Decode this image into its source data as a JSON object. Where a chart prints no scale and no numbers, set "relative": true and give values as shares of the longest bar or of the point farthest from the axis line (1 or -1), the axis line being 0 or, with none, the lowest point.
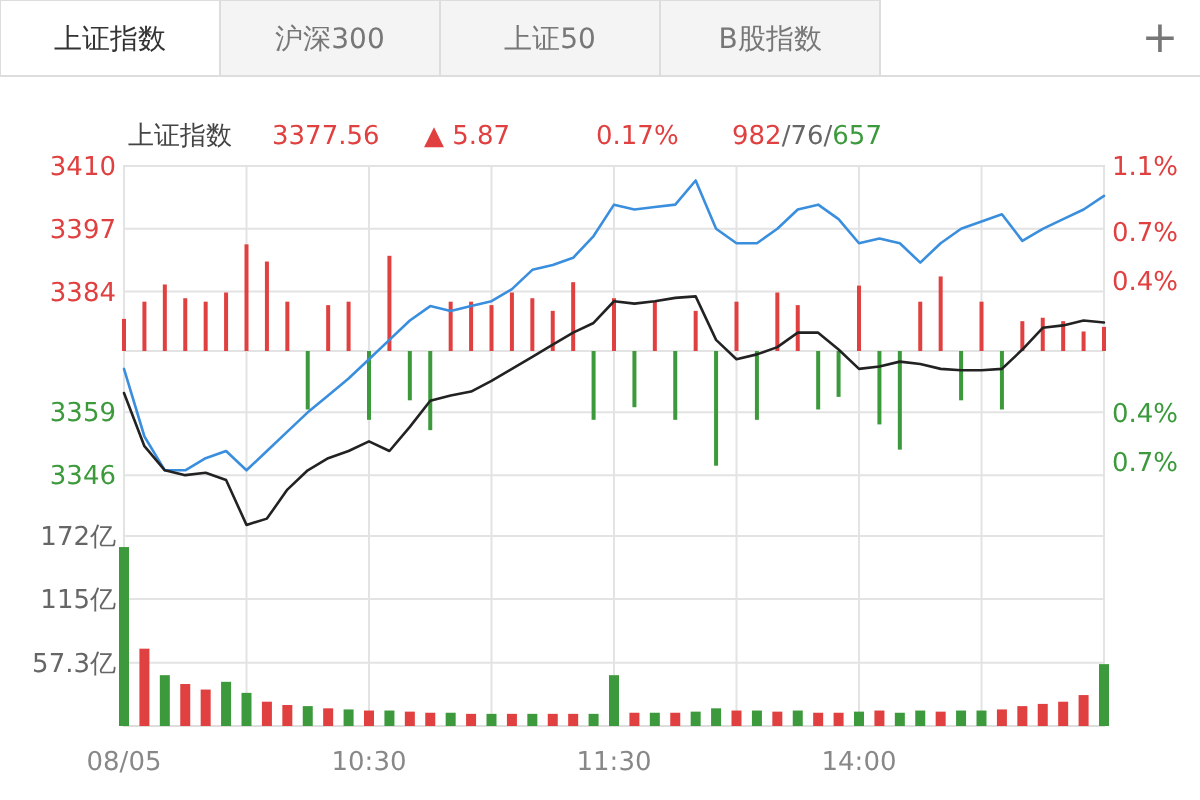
{
  "chart_data": [
    {
      "type": "line",
      "title": "上证指数",
      "annotations": [
        "上证指数",
        "沪深300",
        "上证50",
        "B股指数",
        "+",
        "3377.56",
        "▲ 5.87",
        "0.17%",
        "982/76/657"
      ],
      "categories": [
        null,
        null,
        null,
        null,
        null,
        null,
        null,
        null,
        null,
        null,
        null,
        null,
        null,
        null,
        null,
        null,
        null,
        null,
        null,
        null,
        null,
        null,
        null,
        null,
        null,
        null,
        null,
        null,
        null,
        null,
        null,
        null,
        null,
        null,
        null,
        null,
        null,
        null,
        null,
        null,
        null,
        null,
        null,
        null,
        null,
        null,
        null,
        null,
        null
      ],
      "ylim": [
        3333.4,
        3410
      ],
      "yticks": [
        3410,
        3397,
        3384,
        3359,
        3346
      ],
      "y2lim": [
        -1.15,
        1.1
      ],
      "y2ticks": [
        {
          "value": 1.1,
          "label": "1.1%"
        },
        {
          "value": 0.7,
          "label": "0.7%"
        },
        {
          "value": 0.4,
          "label": "0.4%"
        },
        {
          "value": -0.4,
          "label": "0.4%"
        },
        {
          "value": -0.7,
          "label": "0.7%"
        }
      ],
      "grid": true,
      "tick_labels": "y",
      "series": [
        {
          "color": "#3a8ede",
          "values": [
            3368,
            3354,
            3347,
            3347,
            3349.5,
            3351,
            3347,
            3351,
            3355,
            3359,
            3362.5,
            3366,
            3370,
            3374,
            3378,
            3381,
            3380,
            3381,
            3382,
            3384.5,
            3388.5,
            3389.5,
            3391,
            3395.5,
            3402,
            3401,
            3401.5,
            3402,
            3407,
            3397,
            3394,
            3394,
            3397,
            3401,
            3402,
            3399,
            3394,
            3395,
            3394,
            3390,
            3394,
            3397,
            3398.5,
            3400,
            3394.5,
            3397,
            3399,
            3401,
            3403.8
          ]
        },
        {
          "color": "#222222",
          "values": [
            3363,
            3352,
            3347,
            3346,
            3346.5,
            3345,
            3335.7,
            3337,
            3343,
            3347,
            3349.5,
            3351,
            3353,
            3351,
            3356,
            3361.4,
            3362.5,
            3363.3,
            3365.5,
            3368,
            3370.5,
            3373,
            3375.5,
            3377.5,
            3382,
            3381.5,
            3382,
            3382.7,
            3383,
            3374,
            3370,
            3371,
            3372.5,
            3375.5,
            3375.5,
            3372,
            3368,
            3368.5,
            3369.5,
            3369,
            3368,
            3367.7,
            3367.7,
            3368,
            3372,
            3376.5,
            3377,
            3378,
            3377.6
          ]
        }
      ]
    },
    {
      "type": "bar",
      "relative": true,
      "categories": [
        null,
        null,
        null,
        null,
        null,
        null,
        null,
        null,
        null,
        null,
        null,
        null,
        null,
        null,
        null,
        null,
        null,
        null,
        null,
        null,
        null,
        null,
        null,
        null,
        null,
        null,
        null,
        null,
        null,
        null,
        null,
        null,
        null,
        null,
        null,
        null,
        null,
        null,
        null,
        null,
        null,
        null,
        null,
        null,
        null,
        null,
        null,
        null,
        null
      ],
      "series": [
        {
          "values": [
            0.28,
            0.43,
            0.58,
            0.46,
            0.43,
            0.51,
            0.93,
            0.78,
            0.43,
            -0.51,
            0.4,
            0.43,
            -0.6,
            0.83,
            -0.43,
            -0.69,
            0.43,
            0.43,
            0.4,
            0.51,
            0.46,
            0.35,
            0.6,
            -0.6,
            0.46,
            -0.49,
            0.43,
            -0.6,
            0.35,
            -1,
            0.43,
            -0.6,
            0.51,
            0.4,
            -0.51,
            -0.4,
            0.57,
            -0.64,
            -0.86,
            0.43,
            0.65,
            -0.43,
            0.43,
            -0.51,
            0.26,
            0.29,
            0.26,
            0.17,
            0.21
          ],
          "colors": [
            "#e04040",
            "#e04040",
            "#e04040",
            "#e04040",
            "#e04040",
            "#e04040",
            "#e04040",
            "#e04040",
            "#e04040",
            "#3c9a3c",
            "#e04040",
            "#e04040",
            "#3c9a3c",
            "#e04040",
            "#3c9a3c",
            "#3c9a3c",
            "#e04040",
            "#e04040",
            "#e04040",
            "#e04040",
            "#e04040",
            "#e04040",
            "#e04040",
            "#3c9a3c",
            "#e04040",
            "#3c9a3c",
            "#e04040",
            "#3c9a3c",
            "#e04040",
            "#3c9a3c",
            "#e04040",
            "#3c9a3c",
            "#e04040",
            "#e04040",
            "#3c9a3c",
            "#3c9a3c",
            "#e04040",
            "#3c9a3c",
            "#3c9a3c",
            "#e04040",
            "#e04040",
            "#3c9a3c",
            "#e04040",
            "#3c9a3c",
            "#e04040",
            "#e04040",
            "#e04040",
            "#e04040",
            "#e04040"
          ]
        }
      ]
    },
    {
      "type": "bar",
      "categories": [
        "08/05",
        null,
        null,
        null,
        null,
        null,
        null,
        null,
        null,
        null,
        null,
        null,
        "10:30",
        null,
        null,
        null,
        null,
        null,
        null,
        null,
        null,
        null,
        null,
        null,
        "11:30",
        null,
        null,
        null,
        null,
        null,
        null,
        null,
        null,
        null,
        null,
        null,
        "14:00",
        null,
        null,
        null,
        null,
        null,
        null,
        null,
        null,
        null,
        null,
        null,
        null
      ],
      "ylim": [
        0,
        172
      ],
      "yticks": [
        {
          "value": 172,
          "label": "172亿"
        },
        {
          "value": 115,
          "label": "115亿"
        },
        {
          "value": 57.3,
          "label": "57.3亿"
        }
      ],
      "grid": true,
      "values": [
        162,
        70,
        46,
        38,
        33,
        40,
        30,
        22,
        19,
        18,
        16,
        15,
        14,
        14,
        13,
        12,
        12,
        11,
        11,
        11,
        11,
        11,
        11,
        11,
        46,
        12,
        12,
        12,
        13,
        16,
        14,
        14,
        13,
        14,
        12,
        12,
        13,
        14,
        12,
        14,
        13,
        14,
        14,
        15,
        18,
        20,
        22,
        28,
        56
      ],
      "colors": [
        "#3c9a3c",
        "#e04040",
        "#3c9a3c",
        "#e04040",
        "#e04040",
        "#3c9a3c",
        "#3c9a3c",
        "#e04040",
        "#e04040",
        "#3c9a3c",
        "#e04040",
        "#3c9a3c",
        "#e04040",
        "#3c9a3c",
        "#e04040",
        "#e04040",
        "#3c9a3c",
        "#e04040",
        "#3c9a3c",
        "#e04040",
        "#3c9a3c",
        "#e04040",
        "#e04040",
        "#3c9a3c",
        "#3c9a3c",
        "#e04040",
        "#3c9a3c",
        "#e04040",
        "#3c9a3c",
        "#3c9a3c",
        "#e04040",
        "#3c9a3c",
        "#e04040",
        "#3c9a3c",
        "#e04040",
        "#e04040",
        "#3c9a3c",
        "#e04040",
        "#3c9a3c",
        "#3c9a3c",
        "#e04040",
        "#3c9a3c",
        "#3c9a3c",
        "#e04040",
        "#e04040",
        "#e04040",
        "#e04040",
        "#e04040",
        "#3c9a3c"
      ]
    }
  ]
}
